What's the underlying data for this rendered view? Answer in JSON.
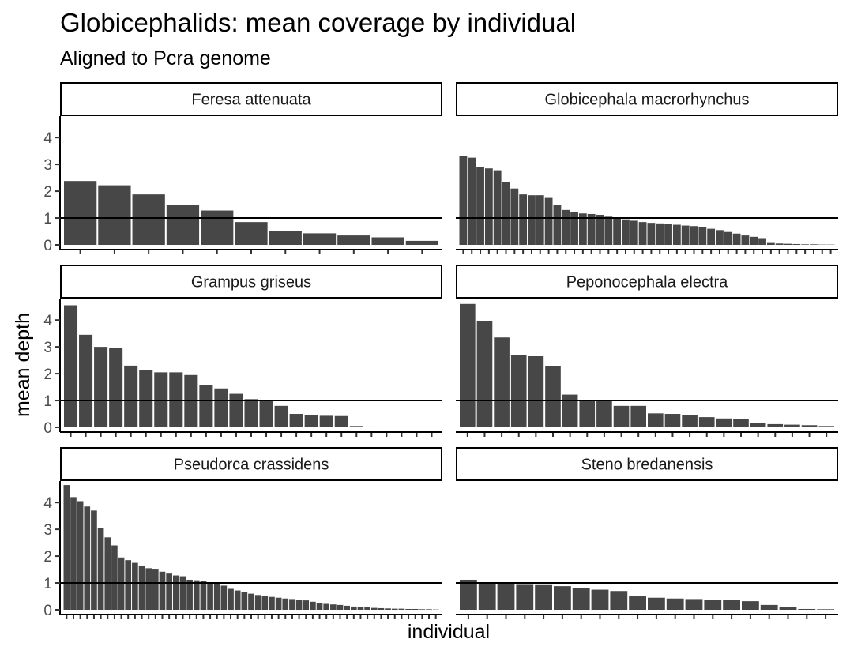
{
  "chart_data": {
    "type": "bar",
    "title": "Globicephalids: mean coverage by individual",
    "subtitle": "Aligned to Pcra genome",
    "xlabel": "individual",
    "ylabel": "mean depth",
    "ylim": [
      0,
      4.8
    ],
    "y_ticks": [
      0,
      1,
      2,
      3,
      4
    ],
    "reference_line": 1,
    "facets": [
      {
        "name": "Feresa attenuata",
        "values": [
          2.38,
          2.22,
          1.88,
          1.48,
          1.28,
          0.85,
          0.52,
          0.43,
          0.35,
          0.28,
          0.15
        ]
      },
      {
        "name": "Globicephala macrorhynchus",
        "values": [
          3.3,
          3.25,
          2.9,
          2.85,
          2.78,
          2.35,
          2.1,
          1.88,
          1.85,
          1.85,
          1.75,
          1.5,
          1.3,
          1.22,
          1.17,
          1.15,
          1.12,
          1.05,
          1.0,
          0.95,
          0.9,
          0.85,
          0.82,
          0.8,
          0.78,
          0.75,
          0.72,
          0.7,
          0.65,
          0.6,
          0.55,
          0.48,
          0.42,
          0.35,
          0.3,
          0.25,
          0.07,
          0.05,
          0.04,
          0.03,
          0.02,
          0.02,
          0.01,
          0.01
        ]
      },
      {
        "name": "Grampus griseus",
        "values": [
          4.55,
          3.45,
          3.0,
          2.95,
          2.3,
          2.12,
          2.05,
          2.05,
          1.95,
          1.58,
          1.45,
          1.25,
          1.05,
          1.0,
          0.8,
          0.5,
          0.45,
          0.43,
          0.42,
          0.05,
          0.03,
          0.02,
          0.02,
          0.02,
          0.01
        ]
      },
      {
        "name": "Peponocephala electra",
        "values": [
          4.6,
          3.95,
          3.35,
          2.68,
          2.65,
          2.28,
          1.22,
          1.02,
          1.0,
          0.8,
          0.8,
          0.52,
          0.5,
          0.45,
          0.38,
          0.33,
          0.3,
          0.15,
          0.12,
          0.1,
          0.08,
          0.05
        ]
      },
      {
        "name": "Pseudorca crassidens",
        "values": [
          4.65,
          4.2,
          4.05,
          3.85,
          3.7,
          3.05,
          2.7,
          2.4,
          1.95,
          1.85,
          1.75,
          1.65,
          1.55,
          1.5,
          1.42,
          1.35,
          1.28,
          1.25,
          1.12,
          1.1,
          1.08,
          1.02,
          0.95,
          0.9,
          0.78,
          0.72,
          0.65,
          0.6,
          0.55,
          0.5,
          0.48,
          0.45,
          0.42,
          0.4,
          0.38,
          0.35,
          0.3,
          0.25,
          0.22,
          0.2,
          0.18,
          0.15,
          0.12,
          0.1,
          0.09,
          0.07,
          0.06,
          0.05,
          0.04,
          0.04,
          0.03,
          0.03,
          0.02,
          0.02,
          0.01
        ]
      },
      {
        "name": "Steno bredanensis",
        "values": [
          1.12,
          1.0,
          0.97,
          0.93,
          0.92,
          0.88,
          0.8,
          0.75,
          0.7,
          0.5,
          0.45,
          0.42,
          0.4,
          0.38,
          0.37,
          0.32,
          0.18,
          0.1,
          0.03,
          0.02
        ]
      }
    ]
  }
}
